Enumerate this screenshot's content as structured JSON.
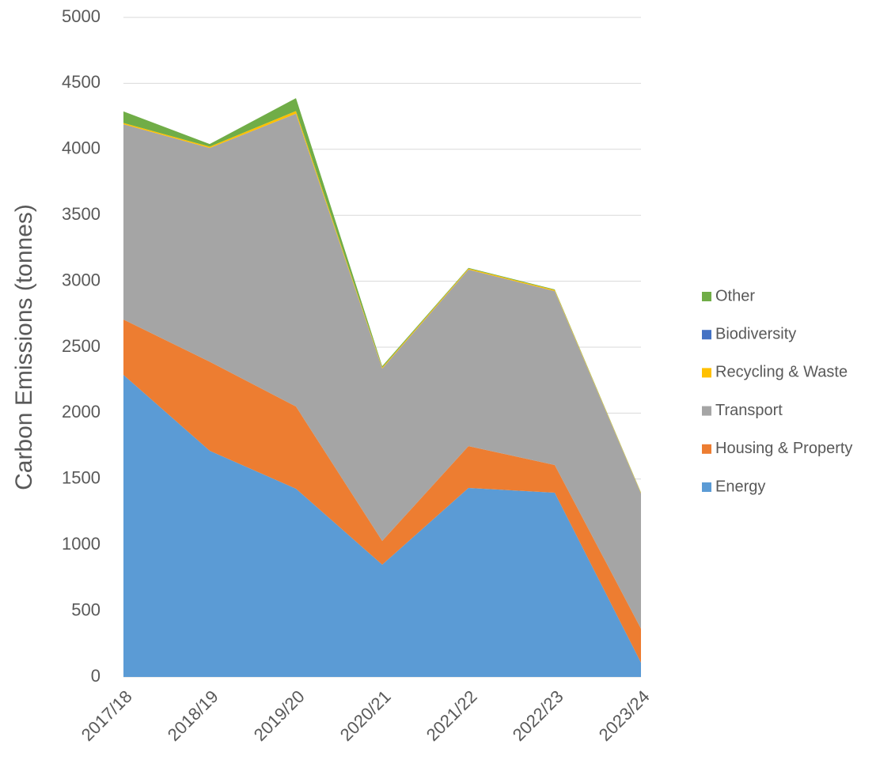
{
  "chart_data": {
    "type": "stacked_area",
    "y_label": "Carbon Emissions (tonnes)",
    "categories": [
      "2017/18",
      "2018/19",
      "2019/20",
      "2020/21",
      "2021/22",
      "2022/23",
      "2023/24"
    ],
    "series": [
      {
        "name": "Energy",
        "color": "#5b9bd5",
        "values": [
          2290,
          1715,
          1427,
          851,
          1433,
          1397,
          108
        ]
      },
      {
        "name": "Housing & Property",
        "color": "#ed7d31",
        "values": [
          420,
          675,
          623,
          180,
          317,
          210,
          258
        ]
      },
      {
        "name": "Transport",
        "color": "#a5a5a5",
        "values": [
          1480,
          1620,
          2220,
          1307,
          1338,
          1318,
          1025
        ]
      },
      {
        "name": "Recycling & Waste",
        "color": "#ffc000",
        "values": [
          10,
          10,
          20,
          8,
          8,
          8,
          5
        ]
      },
      {
        "name": "Biodiversity",
        "color": "#4472c4",
        "values": [
          0,
          0,
          0,
          0,
          0,
          0,
          0
        ]
      },
      {
        "name": "Other",
        "color": "#70ad47",
        "values": [
          87,
          20,
          98,
          10,
          5,
          5,
          3
        ]
      }
    ],
    "ylim": [
      0,
      5000
    ],
    "yticks": [
      0,
      500,
      1000,
      1500,
      2000,
      2500,
      3000,
      3500,
      4000,
      4500,
      5000
    ],
    "grid": true,
    "legend": "right"
  }
}
